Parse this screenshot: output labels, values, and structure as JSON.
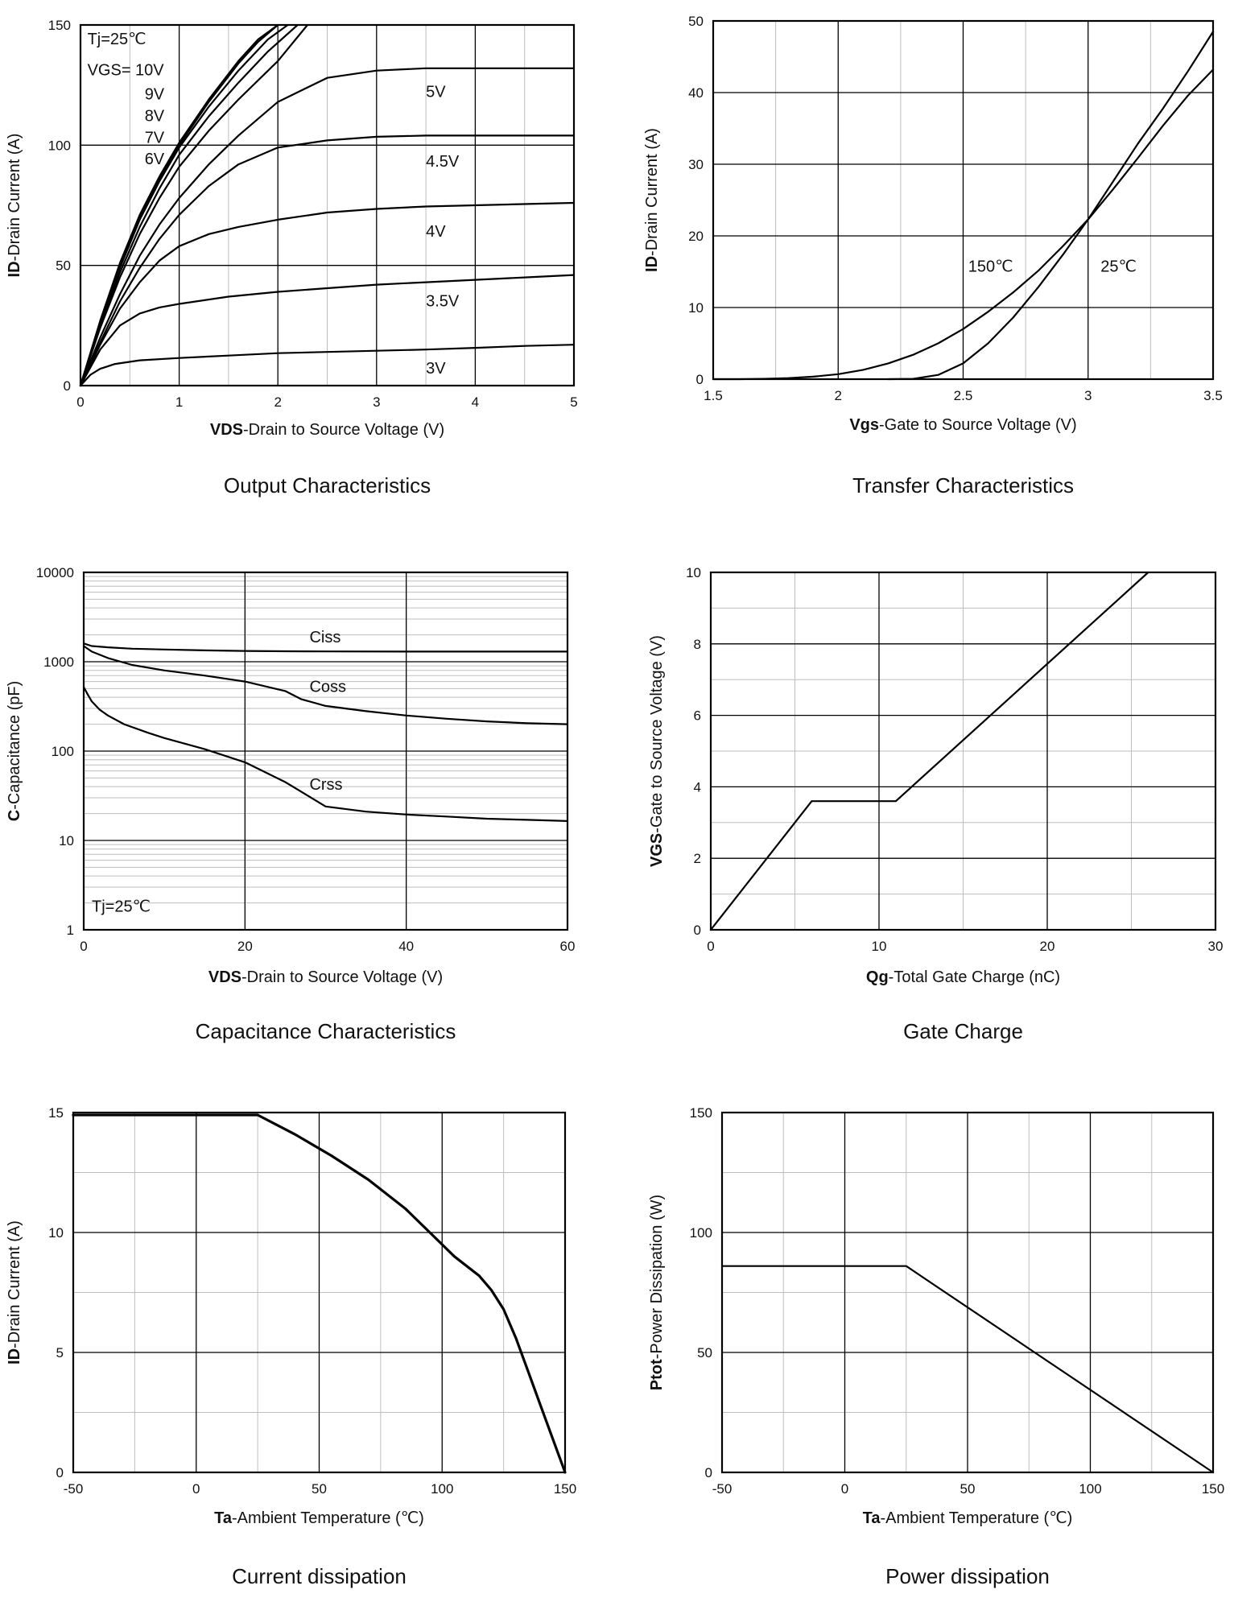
{
  "chart_data": [
    {
      "id": "output",
      "type": "line",
      "title": "Output Characteristics",
      "xlabel_bold": "VDS",
      "xlabel_rest": "-Drain to Source Voltage (V)",
      "ylabel_bold": "ID",
      "ylabel_rest": "-Drain Current (A)",
      "xlim": [
        0,
        5
      ],
      "ylim": [
        0,
        150
      ],
      "xticks": [
        0,
        1,
        2,
        3,
        4,
        5
      ],
      "yticks": [
        0,
        50,
        100,
        150
      ],
      "xminor": [
        0.5,
        1.5,
        2.5,
        3.5,
        4.5
      ],
      "yminor": [],
      "annotations": [
        {
          "text": "Tj=25℃",
          "x": 0.07,
          "y": 142
        },
        {
          "text": "VGS= 10V",
          "x": 0.07,
          "y": 129
        },
        {
          "text": "9V",
          "x": 0.65,
          "y": 119
        },
        {
          "text": "8V",
          "x": 0.65,
          "y": 110
        },
        {
          "text": "7V",
          "x": 0.65,
          "y": 101
        },
        {
          "text": "6V",
          "x": 0.65,
          "y": 92
        }
      ],
      "series": [
        {
          "label": "10V",
          "label_at": null,
          "x": [
            0,
            0.2,
            0.4,
            0.6,
            0.8,
            1.0,
            1.3,
            1.6,
            1.8,
            2.0
          ],
          "y": [
            0,
            27,
            51,
            71,
            87,
            101,
            119,
            135,
            144,
            151
          ]
        },
        {
          "label": "9V",
          "label_at": null,
          "x": [
            0,
            0.2,
            0.4,
            0.6,
            0.8,
            1.0,
            1.3,
            1.6,
            1.8,
            2.0
          ],
          "y": [
            0,
            26.5,
            50,
            70,
            86,
            100,
            118,
            134,
            143,
            150
          ]
        },
        {
          "label": "8V",
          "label_at": null,
          "x": [
            0,
            0.2,
            0.4,
            0.6,
            0.8,
            1.0,
            1.3,
            1.6,
            1.9,
            2.1
          ],
          "y": [
            0,
            26,
            49,
            69,
            85,
            99,
            116,
            131,
            144,
            150
          ]
        },
        {
          "label": "7V",
          "label_at": null,
          "x": [
            0,
            0.2,
            0.4,
            0.6,
            0.8,
            1.0,
            1.3,
            1.6,
            1.9,
            2.2
          ],
          "y": [
            0,
            25,
            47,
            66,
            82,
            96,
            112,
            126,
            139,
            150
          ]
        },
        {
          "label": "6V",
          "label_at": null,
          "x": [
            0,
            0.2,
            0.4,
            0.6,
            0.8,
            1.0,
            1.3,
            1.6,
            2.0,
            2.3
          ],
          "y": [
            0,
            24,
            45,
            63,
            78,
            91,
            106,
            119,
            135,
            150
          ]
        },
        {
          "label": "5V",
          "label_at": [
            3.5,
            120
          ],
          "x": [
            0,
            0.2,
            0.4,
            0.6,
            0.8,
            1.0,
            1.3,
            1.6,
            2.0,
            2.5,
            3.0,
            3.5,
            4.0,
            5.0
          ],
          "y": [
            0,
            20,
            38,
            54,
            67,
            78,
            92,
            104,
            118,
            128,
            131,
            132,
            132,
            132
          ]
        },
        {
          "label": "4.5V",
          "label_at": [
            3.5,
            91
          ],
          "x": [
            0,
            0.2,
            0.4,
            0.6,
            0.8,
            1.0,
            1.3,
            1.6,
            2.0,
            2.5,
            3.0,
            3.5,
            4.0,
            5.0
          ],
          "y": [
            0,
            18,
            35,
            49,
            61,
            71,
            83,
            92,
            99,
            102,
            103.5,
            104,
            104,
            104
          ]
        },
        {
          "label": "4V",
          "label_at": [
            3.5,
            62
          ],
          "x": [
            0,
            0.2,
            0.4,
            0.6,
            0.8,
            1.0,
            1.3,
            1.6,
            2.0,
            2.5,
            3.0,
            3.5,
            4.0,
            5.0
          ],
          "y": [
            0,
            17,
            32,
            43,
            52,
            58,
            63,
            66,
            69,
            72,
            73.5,
            74.5,
            75,
            76
          ]
        },
        {
          "label": "3.5V",
          "label_at": [
            3.5,
            33
          ],
          "x": [
            0,
            0.2,
            0.4,
            0.6,
            0.8,
            1.0,
            1.5,
            2.0,
            2.5,
            3.0,
            3.5,
            4.0,
            4.5,
            5.0
          ],
          "y": [
            0,
            15,
            25,
            30,
            32.5,
            34,
            37,
            39,
            40.5,
            42,
            43,
            44,
            45,
            46
          ]
        },
        {
          "label": "3V",
          "label_at": [
            3.5,
            5
          ],
          "x": [
            0,
            0.1,
            0.2,
            0.35,
            0.6,
            1.0,
            1.5,
            2.0,
            2.5,
            3.0,
            3.5,
            4.0,
            4.5,
            5.0
          ],
          "y": [
            0,
            4.5,
            7,
            9,
            10.5,
            11.5,
            12.5,
            13.5,
            14,
            14.5,
            15,
            15.7,
            16.5,
            17
          ]
        }
      ]
    },
    {
      "id": "transfer",
      "type": "line",
      "title": "Transfer Characteristics",
      "xlabel_bold": "Vgs",
      "xlabel_rest": "-Gate to Source Voltage (V)",
      "ylabel_bold": "ID",
      "ylabel_rest": "-Drain Current (A)",
      "xlim": [
        1.5,
        3.5
      ],
      "ylim": [
        0,
        50
      ],
      "xticks": [
        1.5,
        2,
        2.5,
        3,
        3.5
      ],
      "yticks": [
        0,
        10,
        20,
        30,
        40,
        50
      ],
      "xminor": [
        1.75,
        2.25,
        2.75,
        3.25
      ],
      "yminor": [],
      "annotations": [
        {
          "text": "150℃",
          "x": 2.52,
          "y": 15
        },
        {
          "text": "25℃",
          "x": 3.05,
          "y": 15
        }
      ],
      "series": [
        {
          "label": "150℃",
          "label_at": null,
          "x": [
            1.5,
            1.6,
            1.7,
            1.8,
            1.9,
            2.0,
            2.1,
            2.2,
            2.3,
            2.4,
            2.5,
            2.6,
            2.7,
            2.8,
            2.9,
            3.0,
            3.1,
            3.2,
            3.3,
            3.4,
            3.5
          ],
          "y": [
            0,
            0,
            0.05,
            0.15,
            0.35,
            0.7,
            1.3,
            2.2,
            3.4,
            5.0,
            7.0,
            9.4,
            12.1,
            15.1,
            18.6,
            22.3,
            26.5,
            30.9,
            35.4,
            39.6,
            43.2
          ]
        },
        {
          "label": "25℃",
          "label_at": null,
          "x": [
            2.2,
            2.3,
            2.4,
            2.5,
            2.6,
            2.7,
            2.8,
            2.9,
            3.0,
            3.1,
            3.2,
            3.3,
            3.4,
            3.5
          ],
          "y": [
            0,
            0.05,
            0.6,
            2.2,
            5.0,
            8.6,
            12.8,
            17.4,
            22.3,
            27.6,
            32.9,
            37.8,
            43.0,
            48.5
          ]
        }
      ]
    },
    {
      "id": "capacitance",
      "type": "line",
      "title": "Capacitance Characteristics",
      "xlabel_bold": "VDS",
      "xlabel_rest": "-Drain to Source Voltage (V)",
      "ylabel_bold": "C",
      "ylabel_rest": "-Capacitance (pF)",
      "xlim": [
        0,
        60
      ],
      "ylim": [
        1,
        10000
      ],
      "yscale": "log",
      "xticks": [
        0,
        20,
        40,
        60
      ],
      "yticks": [
        1,
        10,
        100,
        1000,
        10000
      ],
      "xminor": [],
      "annotations": [
        {
          "text": "Tj=25℃",
          "x": 1.0,
          "y": 1.6
        }
      ],
      "series": [
        {
          "label": "Ciss",
          "label_at": [
            28,
            1650
          ],
          "x": [
            0,
            1,
            3,
            6,
            10,
            15,
            20,
            25,
            30,
            40,
            50,
            60
          ],
          "y": [
            1600,
            1500,
            1450,
            1400,
            1370,
            1340,
            1320,
            1310,
            1305,
            1300,
            1300,
            1300
          ]
        },
        {
          "label": "Coss",
          "label_at": [
            28,
            460
          ],
          "x": [
            0,
            1,
            3,
            6,
            10,
            15,
            20,
            25,
            27,
            30,
            35,
            40,
            45,
            50,
            55,
            60
          ],
          "y": [
            1500,
            1300,
            1100,
            920,
            800,
            700,
            600,
            470,
            380,
            320,
            280,
            250,
            230,
            215,
            205,
            200
          ]
        },
        {
          "label": "Crss",
          "label_at": [
            28,
            37
          ],
          "x": [
            0,
            0.5,
            1,
            2,
            3,
            5,
            8,
            10,
            15,
            20,
            25,
            27,
            30,
            35,
            40,
            45,
            50,
            55,
            60
          ],
          "y": [
            520,
            430,
            360,
            290,
            250,
            200,
            160,
            140,
            105,
            75,
            45,
            35,
            24,
            21,
            19.5,
            18.5,
            17.5,
            17,
            16.5
          ]
        }
      ]
    },
    {
      "id": "gatecharge",
      "type": "line",
      "title": "Gate Charge",
      "xlabel_bold": "Qg",
      "xlabel_rest": "-Total Gate Charge (nC)",
      "ylabel_bold": "VGS",
      "ylabel_rest": "-Gate to Source Voltage (V)",
      "xlim": [
        0,
        30
      ],
      "ylim": [
        0,
        10
      ],
      "xticks": [
        0,
        10,
        20,
        30
      ],
      "yticks": [
        0,
        2,
        4,
        6,
        8,
        10
      ],
      "xminor": [
        5,
        15,
        25
      ],
      "yminor": [
        1,
        3,
        5,
        7,
        9
      ],
      "annotations": [],
      "series": [
        {
          "label": null,
          "label_at": null,
          "x": [
            0,
            6,
            11,
            26
          ],
          "y": [
            0,
            3.6,
            3.6,
            10
          ]
        }
      ]
    },
    {
      "id": "currentdiss",
      "type": "line",
      "title": "Current dissipation",
      "xlabel_bold": "Ta",
      "xlabel_rest": "-Ambient Temperature (℃)",
      "ylabel_bold": "ID",
      "ylabel_rest": "-Drain Current (A)",
      "xlim": [
        -50,
        150
      ],
      "ylim": [
        0,
        15
      ],
      "xticks": [
        -50,
        0,
        50,
        100,
        150
      ],
      "yticks": [
        0,
        5,
        10,
        15
      ],
      "xminor": [
        -25,
        25,
        75,
        125
      ],
      "yminor": [
        2.5,
        7.5,
        12.5
      ],
      "annotations": [],
      "series": [
        {
          "label": null,
          "label_at": null,
          "x": [
            -50,
            25,
            40,
            55,
            70,
            85,
            95,
            105,
            115,
            120,
            125,
            130,
            135,
            140,
            145,
            150
          ],
          "y": [
            14.9,
            14.9,
            14.1,
            13.2,
            12.2,
            11.0,
            10.0,
            9.0,
            8.2,
            7.6,
            6.8,
            5.6,
            4.2,
            2.8,
            1.4,
            0
          ]
        }
      ]
    },
    {
      "id": "powerdiss",
      "type": "line",
      "title": "Power dissipation",
      "xlabel_bold": "Ptot",
      "xlabel_rest": "",
      "xlabel_bold_x": "Ta",
      "xlabel_rest_x": "-Ambient Temperature (℃)",
      "ylabel_bold": "Ptot",
      "ylabel_rest": "-Power Dissipation (W)",
      "xlim": [
        -50,
        150
      ],
      "ylim": [
        0,
        150
      ],
      "xticks": [
        -50,
        0,
        50,
        100,
        150
      ],
      "yticks": [
        0,
        50,
        100,
        150
      ],
      "xminor": [
        -25,
        25,
        75,
        125
      ],
      "yminor": [
        25,
        75,
        125
      ],
      "annotations": [],
      "series": [
        {
          "label": null,
          "label_at": null,
          "x": [
            -50,
            25,
            150
          ],
          "y": [
            86,
            86,
            0
          ]
        }
      ]
    }
  ]
}
